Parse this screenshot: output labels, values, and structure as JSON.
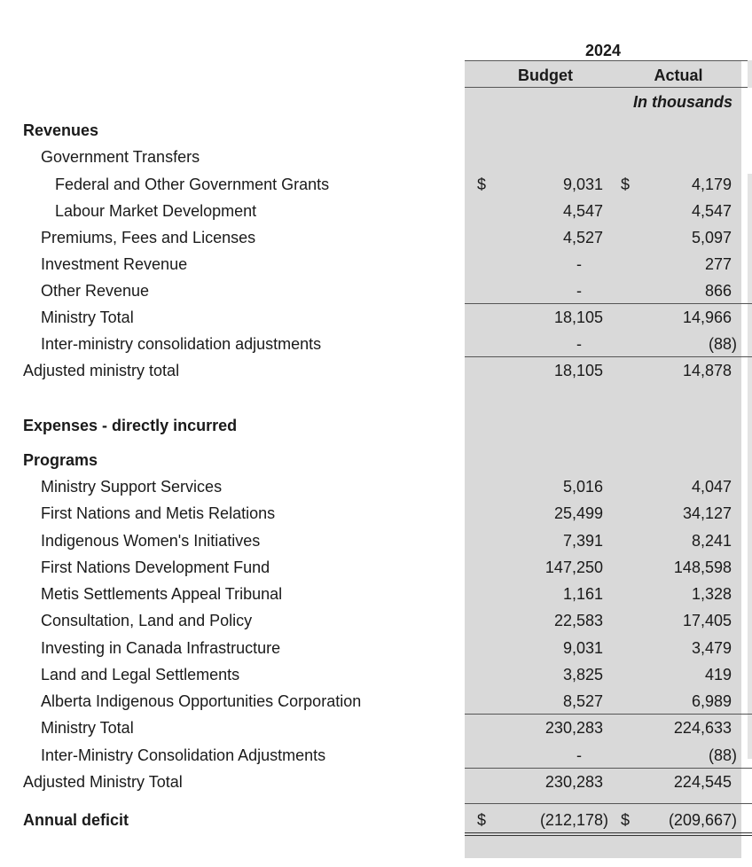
{
  "header": {
    "year": "2024",
    "col_budget": "Budget",
    "col_actual": "Actual",
    "units": "In thousands"
  },
  "currency": "$",
  "rows": [
    {
      "label": "Revenues",
      "budget": "",
      "actual": ""
    },
    {
      "label": "Government Transfers",
      "budget": "",
      "actual": ""
    },
    {
      "label": "Federal and Other Government Grants",
      "budget": "9,031",
      "actual": "4,179"
    },
    {
      "label": "Labour Market Development",
      "budget": "4,547",
      "actual": "4,547"
    },
    {
      "label": "Premiums, Fees and Licenses",
      "budget": "4,527",
      "actual": "5,097"
    },
    {
      "label": "Investment Revenue",
      "budget": "-",
      "actual": "277"
    },
    {
      "label": "Other Revenue",
      "budget": "-",
      "actual": "866"
    },
    {
      "label": "Ministry Total",
      "budget": "18,105",
      "actual": "14,966"
    },
    {
      "label": "Inter-ministry consolidation adjustments",
      "budget": "-",
      "actual": "(88)"
    },
    {
      "label": "Adjusted ministry total",
      "budget": "18,105",
      "actual": "14,878"
    },
    {
      "label": "Expenses - directly incurred",
      "budget": "",
      "actual": ""
    },
    {
      "label": "Programs",
      "budget": "",
      "actual": ""
    },
    {
      "label": "Ministry Support Services",
      "budget": "5,016",
      "actual": "4,047"
    },
    {
      "label": "First Nations and Metis Relations",
      "budget": "25,499",
      "actual": "34,127"
    },
    {
      "label": "Indigenous Women's Initiatives",
      "budget": "7,391",
      "actual": "8,241"
    },
    {
      "label": "First Nations Development Fund",
      "budget": "147,250",
      "actual": "148,598"
    },
    {
      "label": "Metis Settlements Appeal Tribunal",
      "budget": "1,161",
      "actual": "1,328"
    },
    {
      "label": "Consultation, Land and Policy",
      "budget": "22,583",
      "actual": "17,405"
    },
    {
      "label": "Investing in Canada Infrastructure",
      "budget": "9,031",
      "actual": "3,479"
    },
    {
      "label": "Land and Legal Settlements",
      "budget": "3,825",
      "actual": "419"
    },
    {
      "label": "Alberta Indigenous Opportunities Corporation",
      "budget": "8,527",
      "actual": "6,989"
    },
    {
      "label": "Ministry Total",
      "budget": "230,283",
      "actual": "224,633"
    },
    {
      "label": "Inter-Ministry Consolidation Adjustments",
      "budget": "-",
      "actual": "(88)"
    },
    {
      "label": "Adjusted Ministry Total",
      "budget": "230,283",
      "actual": "224,545"
    },
    {
      "label": "Annual deficit",
      "budget": "(212,178)",
      "actual": "(209,667)"
    }
  ]
}
